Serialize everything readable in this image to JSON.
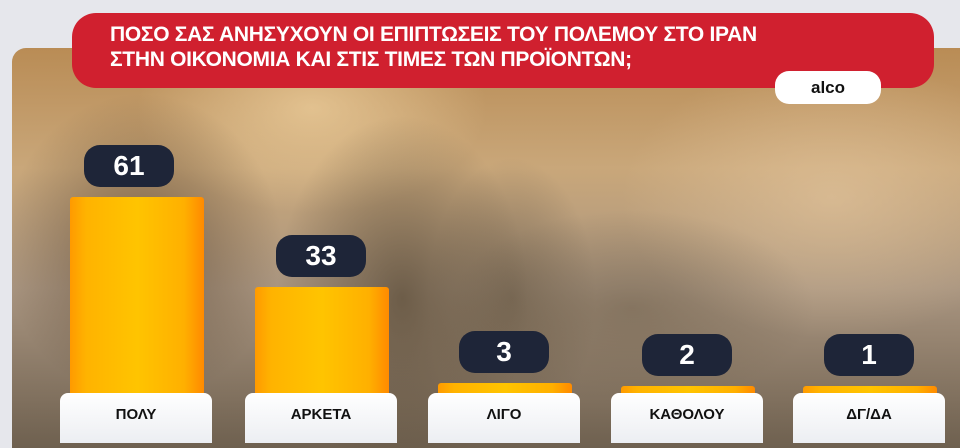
{
  "chart_data": {
    "type": "bar",
    "title": "ΠΟΣΟ ΣΑΣ ΑΝΗΣΥΧΟΥΝ ΟΙ ΕΠΙΠΤΩΣΕΙΣ ΤΟΥ ΠΟΛΕΜΟΥ ΣΤΟ ΙΡΑΝ ΣΤΗΝ ΟΙΚΟΝΟΜΙΑ ΚΑΙ ΣΤΙΣ ΤΙΜΕΣ ΤΩΝ ΠΡΟΪΟΝΤΩΝ;",
    "title_lines": [
      "ΠΟΣΟ ΣΑΣ ΑΝΗΣΥΧΟΥΝ ΟΙ ΕΠΙΠΤΩΣΕΙΣ ΤΟΥ ΠΟΛΕΜΟΥ ΣΤΟ ΙΡΑΝ",
      "ΣΤΗΝ ΟΙΚΟΝΟΜΙΑ ΚΑΙ ΣΤΙΣ ΤΙΜΕΣ ΤΩΝ ΠΡΟΪΟΝΤΩΝ;"
    ],
    "categories": [
      "ΠΟΛΥ",
      "ΑΡΚΕΤΑ",
      "ΛΙΓΟ",
      "ΚΑΘΟΛΟΥ",
      "ΔΓ/ΔΑ"
    ],
    "values": [
      61,
      33,
      3,
      2,
      1
    ],
    "ylim": [
      0,
      61
    ],
    "grid": false,
    "colors": {
      "bar": "#ffb300",
      "label_pill": "#1e2538",
      "title_bg": "#d0202f"
    }
  },
  "source": "alco"
}
